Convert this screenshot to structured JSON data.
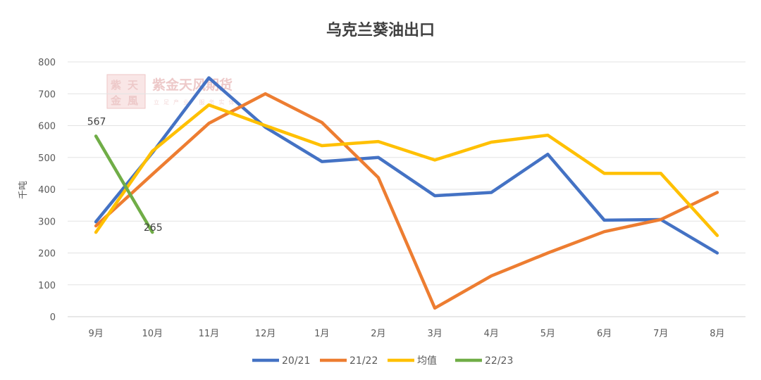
{
  "watermark": {
    "logo_chars": [
      "紫",
      "天",
      "金",
      "風"
    ],
    "text": "紫金天风期货",
    "subtext": "立足产业 服务实体"
  },
  "chart_data": {
    "type": "line",
    "title": "乌克兰葵油出口",
    "xlabel": "",
    "ylabel": "千吨",
    "categories": [
      "9月",
      "10月",
      "11月",
      "12月",
      "1月",
      "2月",
      "3月",
      "4月",
      "5月",
      "6月",
      "7月",
      "8月"
    ],
    "ylim": [
      0,
      800
    ],
    "yticks": [
      0,
      100,
      200,
      300,
      400,
      500,
      600,
      700,
      800
    ],
    "grid": true,
    "legend_position": "bottom",
    "series": [
      {
        "name": "20/21",
        "color": "#4472C4",
        "values": [
          298,
          515,
          750,
          595,
          487,
          500,
          380,
          390,
          510,
          303,
          305,
          200
        ]
      },
      {
        "name": "21/22",
        "color": "#ED7D31",
        "values": [
          285,
          447,
          607,
          700,
          610,
          437,
          27,
          128,
          200,
          267,
          305,
          390
        ]
      },
      {
        "name": "均值",
        "color": "#FFC000",
        "values": [
          265,
          520,
          665,
          600,
          537,
          550,
          492,
          548,
          570,
          450,
          450,
          255
        ]
      },
      {
        "name": "22/23",
        "color": "#70AD47",
        "values": [
          567,
          265,
          null,
          null,
          null,
          null,
          null,
          null,
          null,
          null,
          null,
          null
        ]
      }
    ],
    "data_labels": [
      {
        "series": "22/23",
        "index": 0,
        "text": "567"
      },
      {
        "series": "22/23",
        "index": 1,
        "text": "265"
      }
    ]
  }
}
